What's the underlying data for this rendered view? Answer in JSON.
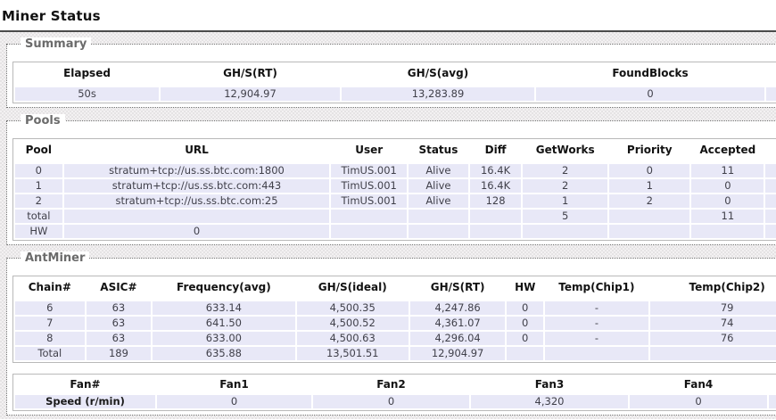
{
  "page": {
    "title": "Miner Status"
  },
  "summary": {
    "legend": "Summary",
    "columns": [
      "Elapsed",
      "GH/S(RT)",
      "GH/S(avg)",
      "FoundBlocks"
    ],
    "rows": [
      [
        "50s",
        "12,904.97",
        "13,283.89",
        "0"
      ]
    ]
  },
  "pools": {
    "legend": "Pools",
    "columns": [
      "Pool",
      "URL",
      "User",
      "Status",
      "Diff",
      "GetWorks",
      "Priority",
      "Accepted"
    ],
    "rows": [
      [
        "0",
        "stratum+tcp://us.ss.btc.com:1800",
        "TimUS.001",
        "Alive",
        "16.4K",
        "2",
        "0",
        "11"
      ],
      [
        "1",
        "stratum+tcp://us.ss.btc.com:443",
        "TimUS.001",
        "Alive",
        "16.4K",
        "2",
        "1",
        "0"
      ],
      [
        "2",
        "stratum+tcp://us.ss.btc.com:25",
        "TimUS.001",
        "Alive",
        "128",
        "1",
        "2",
        "0"
      ],
      [
        "total",
        "",
        "",
        "",
        "",
        "5",
        "",
        "11"
      ],
      [
        "HW",
        "0",
        "",
        "",
        "",
        "",
        "",
        ""
      ]
    ]
  },
  "antminer": {
    "legend": "AntMiner",
    "chains": {
      "columns": [
        "Chain#",
        "ASIC#",
        "Frequency(avg)",
        "GH/S(ideal)",
        "GH/S(RT)",
        "HW",
        "Temp(Chip1)",
        "Temp(Chip2)"
      ],
      "rows": [
        [
          "6",
          "63",
          "633.14",
          "4,500.35",
          "4,247.86",
          "0",
          "-",
          "79"
        ],
        [
          "7",
          "63",
          "641.50",
          "4,500.52",
          "4,361.07",
          "0",
          "-",
          "74"
        ],
        [
          "8",
          "63",
          "633.00",
          "4,500.63",
          "4,296.04",
          "0",
          "-",
          "76"
        ],
        [
          "Total",
          "189",
          "635.88",
          "13,501.51",
          "12,904.97",
          "",
          "",
          ""
        ]
      ]
    },
    "fans": {
      "columns": [
        "Fan#",
        "Fan1",
        "Fan2",
        "Fan3",
        "Fan4"
      ],
      "rows": [
        [
          "Speed (r/min)",
          "0",
          "0",
          "4,320",
          "0"
        ]
      ]
    }
  },
  "colors": {
    "row_background": "#e8e8f7",
    "table_border": "#b9b9b9",
    "legend_text": "#6b6b6b",
    "title_rule": "#4b4b4b"
  }
}
